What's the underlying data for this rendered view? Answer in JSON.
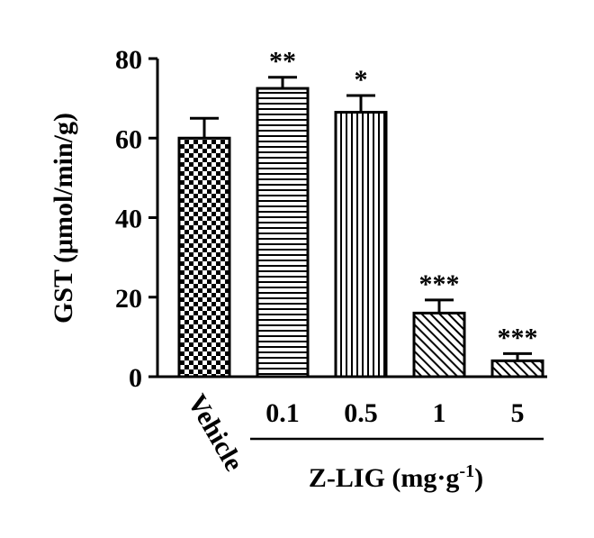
{
  "chart_data": {
    "type": "bar",
    "title": "",
    "ylabel": "GST (μmol/min/g)",
    "xlabel_group": {
      "text": "Z-LIG (mg·g",
      "sup": "-1",
      "close": ")"
    },
    "ylim": [
      0,
      80
    ],
    "yticks": [
      0,
      20,
      40,
      60,
      80
    ],
    "categories": [
      "Vehicle",
      "0.1",
      "0.5",
      "1",
      "5"
    ],
    "values": [
      60,
      72.5,
      66.5,
      16,
      4
    ],
    "errors": [
      5,
      2.8,
      4.2,
      3.3,
      1.8
    ],
    "significance": [
      "",
      "**",
      "*",
      "***",
      "***"
    ],
    "patterns": [
      "checker",
      "horizontal",
      "vertical",
      "diagonal",
      "diagonal"
    ],
    "grid": false,
    "legend": "none",
    "colors": {
      "bar_stroke": "#000000",
      "fill_bg": "#ffffff",
      "pattern": "#000000"
    }
  }
}
